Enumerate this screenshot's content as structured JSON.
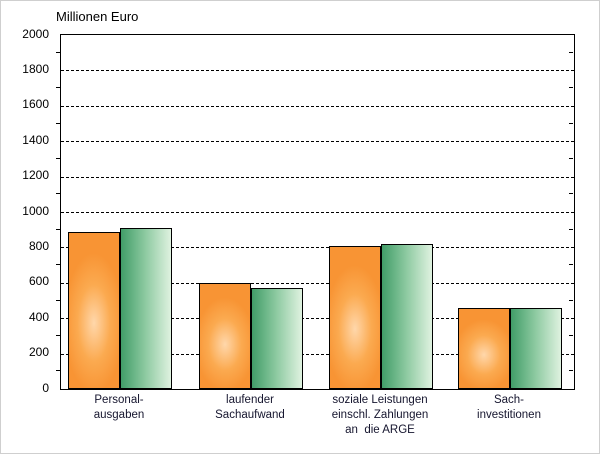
{
  "window": {
    "background_color": "#FFFFFF",
    "frame_border_color": "#CFCFCF"
  },
  "chart_data": {
    "type": "bar",
    "title": "Millionen Euro",
    "xlabel": "",
    "ylabel": "Millionen Euro",
    "ylim": [
      0,
      2000
    ],
    "ytick_step": 200,
    "ytick_labels": [
      "2000",
      "1800",
      "1600",
      "1400",
      "1200",
      "1000",
      "800",
      "600",
      "400",
      "200",
      "0"
    ],
    "minor_tick_step": 100,
    "grid": "horizontal-dashed",
    "legend_position": "none",
    "categories": [
      [
        "Personal-",
        "ausgaben"
      ],
      [
        "laufender",
        "Sachaufwand"
      ],
      [
        "soziale Leistungen",
        "einschl. Zahlungen",
        "an  die ARGE"
      ],
      [
        "Sach-",
        "investitionen"
      ]
    ],
    "series": [
      {
        "color_name": "orange",
        "values": [
          885,
          600,
          810,
          460
        ]
      },
      {
        "color_name": "green",
        "values": [
          910,
          570,
          820,
          460
        ]
      }
    ]
  },
  "colors": {
    "bar_border": "#000000",
    "orange_edge": "#F89434",
    "orange_highlight": "#FFD7AB",
    "green_dark": "#419D68",
    "green_light": "#DFF2E0",
    "grid_color": "#000000",
    "axis_color": "#000000",
    "text_color": "#000000",
    "category_text_color": "#15152E"
  }
}
